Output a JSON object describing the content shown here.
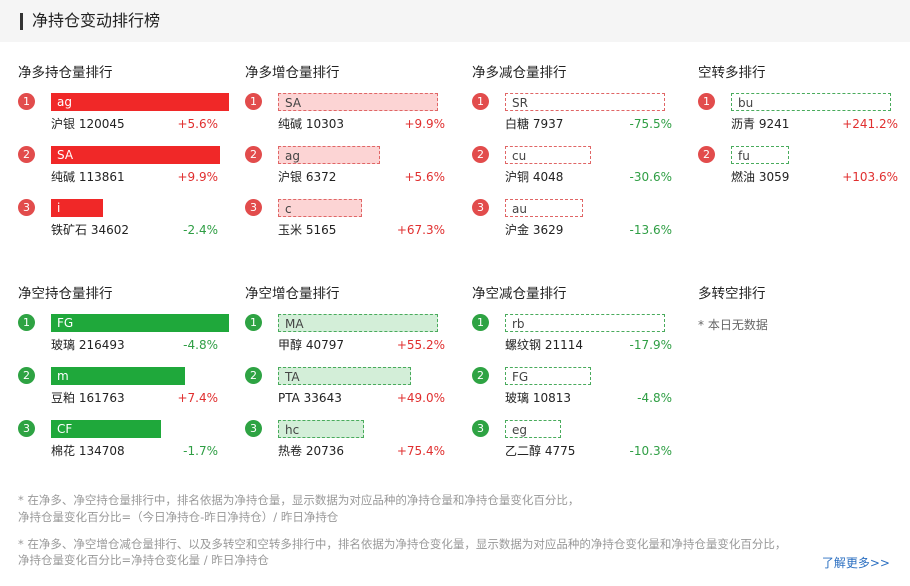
{
  "header": {
    "title": "净持仓变动排行榜"
  },
  "top_sections": [
    {
      "title": "净多持仓量排行",
      "items": [
        {
          "rank": "1",
          "code": "ag",
          "name": "沪银 120045",
          "pct": "+5.6%",
          "dir": "up",
          "level": 1.0
        },
        {
          "rank": "2",
          "code": "SA",
          "name": "纯碱 113861",
          "pct": "+9.9%",
          "dir": "up",
          "level": 0.95
        },
        {
          "rank": "3",
          "code": "i",
          "name": "铁矿石 34602",
          "pct": "-2.4%",
          "dir": "down",
          "level": 0.29
        }
      ]
    },
    {
      "title": "净多增仓量排行",
      "items": [
        {
          "rank": "1",
          "code": "SA",
          "name": "纯碱 10303",
          "pct": "+9.9%",
          "dir": "up",
          "level": 1.0
        },
        {
          "rank": "2",
          "code": "ag",
          "name": "沪银 6372",
          "pct": "+5.6%",
          "dir": "up",
          "level": 0.62
        },
        {
          "rank": "3",
          "code": "c",
          "name": "玉米 5165",
          "pct": "+67.3%",
          "dir": "up",
          "level": 0.5
        }
      ]
    },
    {
      "title": "净多减仓量排行",
      "items": [
        {
          "rank": "1",
          "code": "SR",
          "name": "白糖 7937",
          "pct": "-75.5%",
          "dir": "down",
          "level": 1.0
        },
        {
          "rank": "2",
          "code": "cu",
          "name": "沪铜 4048",
          "pct": "-30.6%",
          "dir": "down",
          "level": 0.51
        },
        {
          "rank": "3",
          "code": "au",
          "name": "沪金 3629",
          "pct": "-13.6%",
          "dir": "down",
          "level": 0.46
        }
      ]
    },
    {
      "title": "空转多排行",
      "items": [
        {
          "rank": "1",
          "code": "bu",
          "name": "沥青 9241",
          "pct": "+241.2%",
          "dir": "up",
          "level": 1.0
        },
        {
          "rank": "2",
          "code": "fu",
          "name": "燃油 3059",
          "pct": "+103.6%",
          "dir": "up",
          "level": 0.33
        }
      ]
    }
  ],
  "bottom_sections": [
    {
      "title": "净空持仓量排行",
      "items": [
        {
          "rank": "1",
          "code": "FG",
          "name": "玻璃 216493",
          "pct": "-4.8%",
          "dir": "down",
          "level": 1.0
        },
        {
          "rank": "2",
          "code": "m",
          "name": "豆粕 161763",
          "pct": "+7.4%",
          "dir": "up",
          "level": 0.75
        },
        {
          "rank": "3",
          "code": "CF",
          "name": "棉花 134708",
          "pct": "-1.7%",
          "dir": "down",
          "level": 0.62
        }
      ]
    },
    {
      "title": "净空增仓量排行",
      "items": [
        {
          "rank": "1",
          "code": "MA",
          "name": "甲醇 40797",
          "pct": "+55.2%",
          "dir": "up",
          "level": 1.0
        },
        {
          "rank": "2",
          "code": "TA",
          "name": "PTA 33643",
          "pct": "+49.0%",
          "dir": "up",
          "level": 0.82
        },
        {
          "rank": "3",
          "code": "hc",
          "name": "热卷 20736",
          "pct": "+75.4%",
          "dir": "up",
          "level": 0.51
        }
      ]
    },
    {
      "title": "净空减仓量排行",
      "items": [
        {
          "rank": "1",
          "code": "rb",
          "name": "螺纹钢 21114",
          "pct": "-17.9%",
          "dir": "down",
          "level": 1.0
        },
        {
          "rank": "2",
          "code": "FG",
          "name": "玻璃 10813",
          "pct": "-4.8%",
          "dir": "down",
          "level": 0.51
        },
        {
          "rank": "3",
          "code": "eg",
          "name": "乙二醇 4775",
          "pct": "-10.3%",
          "dir": "down",
          "level": 0.23
        }
      ]
    },
    {
      "title": "多转空排行",
      "items": [],
      "empty": "* 本日无数据"
    }
  ],
  "notes": {
    "note1_line1": "* 在净多、净空持仓量排行中，排名依据为净持仓量，显示数据为对应品种的净持仓量和净持仓量变化百分比，",
    "note1_line2": "净持仓量变化百分比=（今日净持仓-昨日净持仓）/ 昨日净持仓",
    "note2_line1": "* 在净多、净空增仓减仓量排行、以及多转空和空转多排行中，排名依据为净持仓变化量，显示数据为对应品种的净持仓变化量和净持仓量变化百分比，",
    "note2_line2": "净持仓量变化百分比=净持仓变化量 / 昨日净持仓"
  },
  "more_link": "了解更多>>",
  "colors": {
    "long_solid": "#f02828",
    "short_solid": "#1fa83b",
    "up_text": "#e02f2f",
    "down_text": "#2f9e44"
  }
}
